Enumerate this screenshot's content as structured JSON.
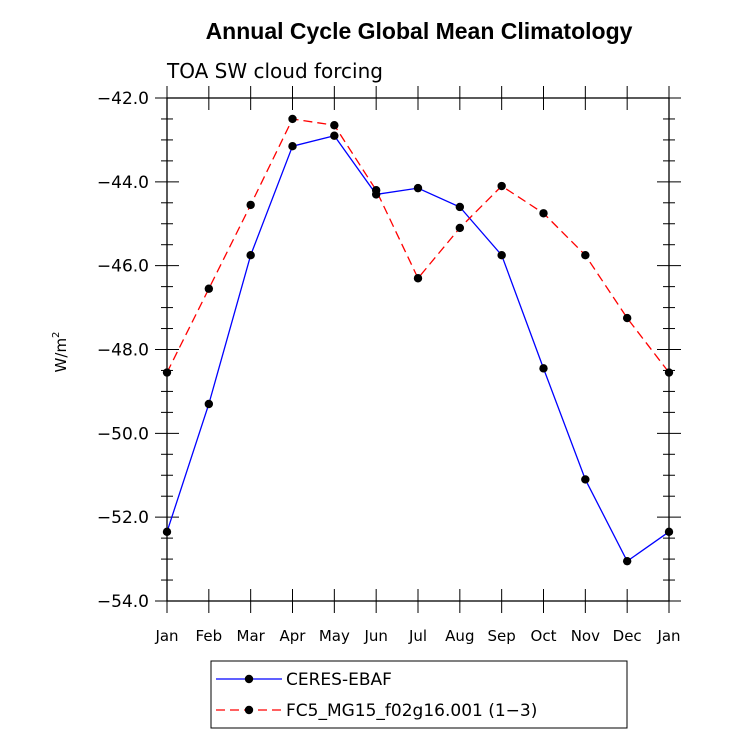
{
  "chart_data": {
    "type": "line",
    "title": "Annual Cycle Global Mean Climatology",
    "subtitle": "TOA SW cloud forcing",
    "ylabel": "W/m",
    "ylabel_sup": "2",
    "xlabel": "",
    "ylim": [
      -54.0,
      -42.0
    ],
    "yticks": [
      -42.0,
      -44.0,
      -46.0,
      -48.0,
      -50.0,
      -52.0,
      -54.0
    ],
    "ytick_labels": [
      "−42.0",
      "−44.0",
      "−46.0",
      "−48.0",
      "−50.0",
      "−52.0",
      "−54.0"
    ],
    "categories": [
      "Jan",
      "Feb",
      "Mar",
      "Apr",
      "May",
      "Jun",
      "Jul",
      "Aug",
      "Sep",
      "Oct",
      "Nov",
      "Dec",
      "Jan"
    ],
    "series": [
      {
        "name": "CERES-EBAF",
        "color": "#0000ff",
        "dash": "solid",
        "values": [
          -52.35,
          -49.3,
          -45.75,
          -43.15,
          -42.9,
          -44.3,
          -44.15,
          -44.6,
          -45.75,
          -48.45,
          -51.1,
          -53.05,
          -52.35
        ]
      },
      {
        "name": "FC5_MG15_f02g16.001 (1−3)",
        "color": "#ff0000",
        "dash": "dashed",
        "values": [
          -48.55,
          -46.55,
          -44.55,
          -42.5,
          -42.65,
          -44.2,
          -46.3,
          -45.1,
          -44.1,
          -44.75,
          -45.75,
          -47.25,
          -48.55
        ]
      }
    ],
    "legend_position": "bottom-center",
    "grid": false
  }
}
